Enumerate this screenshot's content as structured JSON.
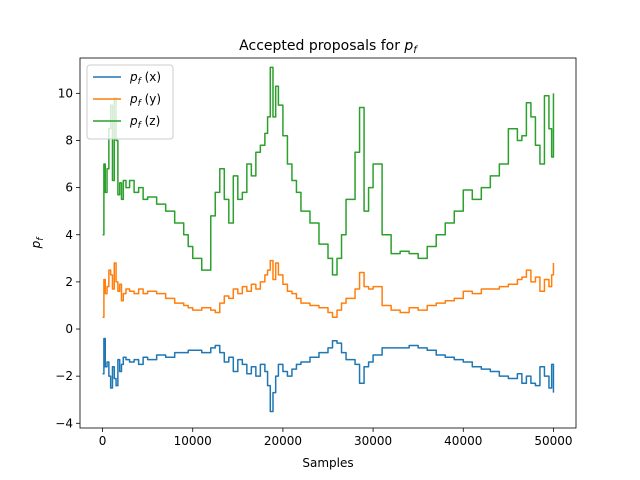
{
  "chart_data": {
    "type": "line",
    "title": "Accepted proposals for p_f",
    "title_text": "Accepted proposals for ",
    "title_symbol": "p",
    "title_subscript": "f",
    "xlabel": "Samples",
    "ylabel_symbol": "p",
    "ylabel_subscript": "f",
    "xlim": [
      -2500,
      52500
    ],
    "ylim": [
      -4.2,
      11.5
    ],
    "xticks": [
      0,
      10000,
      20000,
      30000,
      40000,
      50000
    ],
    "xtick_labels": [
      "0",
      "10000",
      "20000",
      "30000",
      "40000",
      "50000"
    ],
    "yticks": [
      -4,
      -2,
      0,
      2,
      4,
      6,
      8,
      10
    ],
    "ytick_labels": [
      "−4",
      "−2",
      "0",
      "2",
      "4",
      "6",
      "8",
      "10"
    ],
    "grid": false,
    "legend_position": "top-left",
    "series": [
      {
        "name": "p_f (x)",
        "legend_symbol": "p",
        "legend_sub": "f",
        "legend_suffix": " (x)",
        "color": "#1f77b4",
        "x": [
          0,
          150,
          300,
          500,
          700,
          900,
          1100,
          1300,
          1500,
          1700,
          1900,
          2100,
          2300,
          2600,
          3000,
          3500,
          4000,
          4500,
          5000,
          6000,
          7000,
          8000,
          9000,
          9500,
          10000,
          11000,
          12000,
          12500,
          13000,
          13500,
          14000,
          14500,
          15000,
          15500,
          16000,
          16500,
          17000,
          17500,
          18000,
          18300,
          18600,
          18900,
          19200,
          19500,
          20000,
          20500,
          21000,
          21500,
          22000,
          23000,
          24000,
          25000,
          25500,
          26000,
          26500,
          27000,
          28000,
          28500,
          29000,
          29500,
          30000,
          31000,
          32000,
          33000,
          34000,
          35000,
          36000,
          37000,
          38000,
          39000,
          40000,
          41000,
          42000,
          43000,
          44000,
          45000,
          46000,
          46500,
          47000,
          47500,
          48000,
          48500,
          49000,
          49500,
          49800,
          50000
        ],
        "y": [
          -1.9,
          -0.4,
          -1.6,
          -1.4,
          -2.0,
          -2.5,
          -1.6,
          -2.1,
          -2.4,
          -1.3,
          -1.8,
          -1.5,
          -1.2,
          -1.3,
          -1.4,
          -1.3,
          -1.5,
          -1.2,
          -1.3,
          -1.1,
          -1.2,
          -1.0,
          -1.0,
          -0.9,
          -0.9,
          -1.0,
          -0.8,
          -0.7,
          -1.0,
          -1.4,
          -1.2,
          -1.8,
          -1.3,
          -1.5,
          -1.9,
          -1.6,
          -2.0,
          -1.5,
          -1.8,
          -2.4,
          -3.5,
          -2.7,
          -2.0,
          -1.5,
          -1.8,
          -2.0,
          -1.7,
          -1.5,
          -1.4,
          -1.2,
          -1.0,
          -0.8,
          -0.5,
          -0.6,
          -1.0,
          -1.3,
          -1.5,
          -2.3,
          -1.6,
          -1.4,
          -1.1,
          -0.8,
          -0.8,
          -0.8,
          -0.7,
          -0.8,
          -0.9,
          -1.1,
          -1.2,
          -1.3,
          -1.4,
          -1.6,
          -1.7,
          -1.8,
          -2.0,
          -2.1,
          -1.9,
          -2.3,
          -2.0,
          -2.3,
          -2.4,
          -1.6,
          -2.0,
          -2.5,
          -1.5,
          -2.7
        ]
      },
      {
        "name": "p_f (y)",
        "legend_symbol": "p",
        "legend_sub": "f",
        "legend_suffix": " (y)",
        "color": "#ff7f0e",
        "x": [
          0,
          150,
          300,
          500,
          700,
          900,
          1100,
          1300,
          1500,
          1700,
          1900,
          2100,
          2300,
          2600,
          3000,
          3500,
          4000,
          4500,
          5000,
          6000,
          7000,
          8000,
          9000,
          9500,
          10000,
          11000,
          12000,
          12500,
          13000,
          13500,
          14000,
          14500,
          15000,
          15500,
          16000,
          16500,
          17000,
          17500,
          18000,
          18300,
          18600,
          18900,
          19200,
          19500,
          20000,
          20500,
          21000,
          21500,
          22000,
          23000,
          24000,
          25000,
          25500,
          26000,
          26500,
          27000,
          28000,
          28500,
          29000,
          29500,
          30000,
          31000,
          32000,
          33000,
          34000,
          35000,
          36000,
          37000,
          38000,
          39000,
          40000,
          41000,
          42000,
          43000,
          44000,
          45000,
          46000,
          46500,
          47000,
          47500,
          48000,
          48500,
          49000,
          49500,
          49800,
          50000
        ],
        "y": [
          0.5,
          2.1,
          1.5,
          1.8,
          2.5,
          2.3,
          1.7,
          2.8,
          2.0,
          1.6,
          1.9,
          1.2,
          1.5,
          1.7,
          1.6,
          1.5,
          1.7,
          1.5,
          1.6,
          1.5,
          1.3,
          1.1,
          1.0,
          0.9,
          0.8,
          0.9,
          0.8,
          0.7,
          1.1,
          1.4,
          1.3,
          1.7,
          1.5,
          1.8,
          1.6,
          1.9,
          1.7,
          2.0,
          2.3,
          2.5,
          2.9,
          2.1,
          2.8,
          2.3,
          1.9,
          1.6,
          1.5,
          1.3,
          1.1,
          1.0,
          0.9,
          0.7,
          0.5,
          0.8,
          1.1,
          1.3,
          1.7,
          2.4,
          1.8,
          1.7,
          1.8,
          1.0,
          0.8,
          0.7,
          0.9,
          0.8,
          1.0,
          1.1,
          1.2,
          1.3,
          1.6,
          1.5,
          1.7,
          1.7,
          1.8,
          1.9,
          2.1,
          2.2,
          2.5,
          2.0,
          2.2,
          1.6,
          2.1,
          1.8,
          2.3,
          2.8
        ]
      },
      {
        "name": "p_f (z)",
        "legend_symbol": "p",
        "legend_sub": "f",
        "legend_suffix": " (z)",
        "color": "#2ca02c",
        "x": [
          0,
          150,
          300,
          500,
          700,
          900,
          1100,
          1300,
          1500,
          1700,
          1900,
          2100,
          2300,
          2600,
          3000,
          3500,
          4000,
          4500,
          5000,
          6000,
          7000,
          8000,
          9000,
          9500,
          10000,
          11000,
          12000,
          12500,
          13000,
          13500,
          14000,
          14500,
          15000,
          15500,
          16000,
          16500,
          17000,
          17500,
          18000,
          18300,
          18600,
          18900,
          19200,
          19500,
          20000,
          20500,
          21000,
          21500,
          22000,
          23000,
          24000,
          25000,
          25500,
          26000,
          26500,
          27000,
          28000,
          28500,
          29000,
          29500,
          30000,
          31000,
          32000,
          33000,
          34000,
          35000,
          36000,
          37000,
          38000,
          39000,
          40000,
          41000,
          42000,
          43000,
          44000,
          45000,
          46000,
          46500,
          47000,
          47500,
          48000,
          48500,
          49000,
          49500,
          49800,
          50000
        ],
        "y": [
          4.0,
          7.0,
          5.8,
          6.8,
          8.5,
          9.5,
          6.3,
          9.8,
          8.0,
          5.7,
          6.2,
          5.5,
          6.3,
          6.0,
          6.3,
          5.8,
          6.0,
          5.5,
          5.6,
          5.3,
          5.0,
          4.5,
          4.0,
          3.5,
          3.0,
          2.5,
          4.8,
          5.8,
          6.8,
          5.5,
          4.5,
          6.5,
          5.5,
          5.8,
          7.0,
          6.5,
          7.5,
          7.8,
          8.3,
          9.0,
          11.1,
          9.0,
          10.3,
          9.5,
          8.2,
          7.0,
          6.3,
          5.8,
          5.0,
          4.5,
          3.6,
          3.0,
          2.3,
          3.0,
          4.0,
          5.5,
          7.5,
          9.4,
          5.0,
          6.0,
          7.0,
          4.0,
          3.2,
          3.3,
          3.2,
          3.0,
          3.5,
          4.0,
          4.5,
          5.0,
          5.9,
          5.5,
          6.0,
          6.5,
          7.0,
          8.5,
          8.0,
          8.2,
          9.6,
          9.0,
          7.8,
          7.0,
          9.9,
          8.5,
          7.3,
          10.0
        ]
      }
    ]
  }
}
